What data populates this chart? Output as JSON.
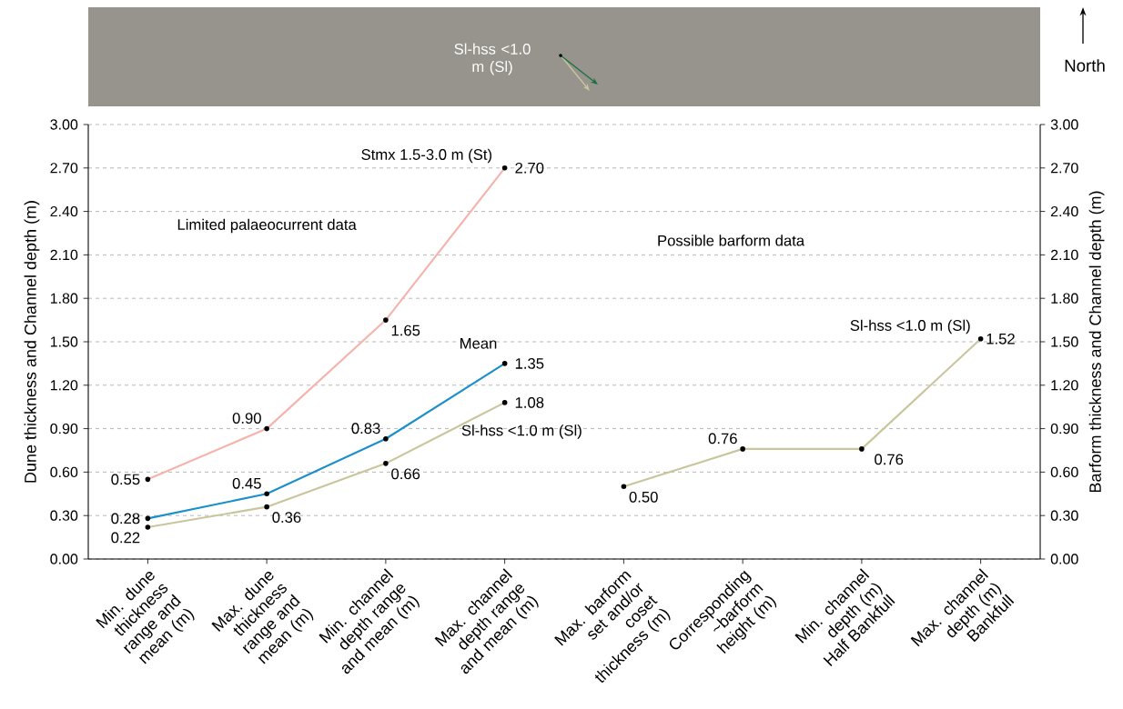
{
  "chart_data": {
    "type": "line",
    "ylabel": "Dune thickness and Channel depth (m)",
    "y2label": "Barform thickness and Channel depth (m)",
    "categories": [
      "Min. dune thickness range and mean (m)",
      "Max. dune thickness range and mean (m)",
      "Min. channel depth range and mean (m)",
      "Max. channel depth range and mean (m)",
      "Max. barform set and/or coset thickness (m)",
      "Corresponding ~barform height (m)",
      "Min. channel depth (m) Half Bankfull",
      "Max. channel depth (m) Bankfull"
    ],
    "series": [
      {
        "name": "Stmx 1.5-3.0 m (St)",
        "color": "#f5b3ab",
        "values": [
          0.55,
          0.9,
          1.65,
          2.7,
          null,
          null,
          null,
          null
        ],
        "value_labels": [
          "0.55",
          "0.90",
          "1.65",
          "2.70",
          null,
          null,
          null,
          null
        ]
      },
      {
        "name": "Mean",
        "color": "#1b8fcb",
        "values": [
          0.28,
          0.45,
          0.83,
          1.35,
          null,
          null,
          null,
          null
        ],
        "value_labels": [
          "0.28",
          "0.45",
          "0.83",
          "1.35",
          null,
          null,
          null,
          null
        ]
      },
      {
        "name": "Sl-hss <1.0 m (Sl)",
        "color": "#c9c59c",
        "values": [
          0.22,
          0.36,
          0.66,
          1.08,
          null,
          null,
          null,
          null
        ],
        "value_labels": [
          "0.22",
          "0.36",
          "0.66",
          "1.08",
          null,
          null,
          null,
          null
        ]
      },
      {
        "name": "Sl-hss <1.0 m (Sl)",
        "color": "#c9c59c",
        "axis": "y2",
        "values": [
          null,
          null,
          null,
          null,
          0.5,
          0.76,
          0.76,
          1.52
        ],
        "value_labels": [
          null,
          null,
          null,
          null,
          "0.50",
          "0.76",
          "0.76",
          "1.52"
        ]
      }
    ],
    "ylim": [
      0,
      3
    ],
    "yticks": [
      {
        "value": 0,
        "label": "0.00"
      },
      {
        "value": 0.3,
        "label": "0.30"
      },
      {
        "value": 0.6,
        "label": "0.60"
      },
      {
        "value": 0.9,
        "label": "0.90"
      },
      {
        "value": 1.2,
        "label": "1.20"
      },
      {
        "value": 1.5,
        "label": "1.50"
      },
      {
        "value": 1.8,
        "label": "1.80"
      },
      {
        "value": 2.1,
        "label": "2.10"
      },
      {
        "value": 2.4,
        "label": "2.40"
      },
      {
        "value": 2.7,
        "label": "2.70"
      },
      {
        "value": 3,
        "label": "3.00"
      }
    ],
    "y2lim": [
      0,
      3
    ],
    "y2ticks": [
      {
        "value": 0,
        "label": "0.00"
      },
      {
        "value": 0.3,
        "label": "0.30"
      },
      {
        "value": 0.6,
        "label": "0.60"
      },
      {
        "value": 0.9,
        "label": "0.90"
      },
      {
        "value": 1.2,
        "label": "1.20"
      },
      {
        "value": 1.5,
        "label": "1.50"
      },
      {
        "value": 1.8,
        "label": "1.80"
      },
      {
        "value": 2.1,
        "label": "2.10"
      },
      {
        "value": 2.4,
        "label": "2.40"
      },
      {
        "value": 2.7,
        "label": "2.70"
      },
      {
        "value": 3,
        "label": "3.00"
      }
    ],
    "grid": "y",
    "marker": "circle",
    "line_style": "solid",
    "annotations": [
      "Limited palaeocurrent data",
      "Possible barform data",
      "Sl-hss <1.0 m (Sl)",
      "North"
    ]
  }
}
